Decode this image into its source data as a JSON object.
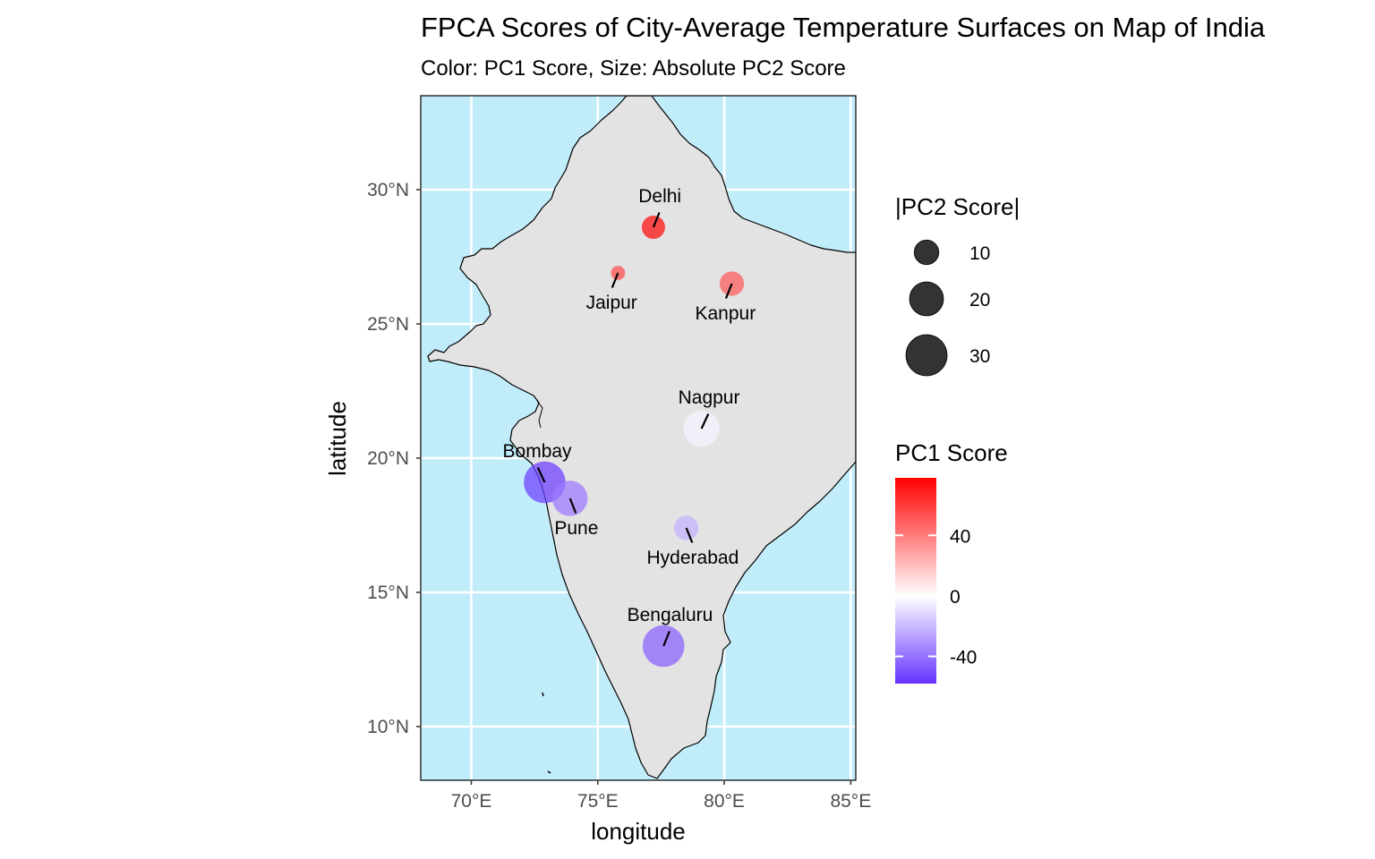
{
  "title": "FPCA Scores of City-Average Temperature Surfaces on Map of India",
  "subtitle": "Color: PC1 Score, Size: Absolute PC2 Score",
  "xlabel": "longitude",
  "ylabel": "latitude",
  "colors": {
    "ocean": "#c1ecfa",
    "land": "#e3e3e3",
    "border": "#000000",
    "grid": "#ffffff",
    "high": "#ff0000",
    "mid": "#ffffff",
    "low": "#6633ff",
    "size_key": "#333333"
  },
  "chart_data": {
    "type": "scatter",
    "x_ticks": [
      {
        "value": 70,
        "label": "70°E"
      },
      {
        "value": 75,
        "label": "75°E"
      },
      {
        "value": 80,
        "label": "80°E"
      },
      {
        "value": 85,
        "label": "85°E"
      }
    ],
    "y_ticks": [
      {
        "value": 10,
        "label": "10°N"
      },
      {
        "value": 15,
        "label": "15°N"
      },
      {
        "value": 20,
        "label": "20°N"
      },
      {
        "value": 25,
        "label": "25°N"
      },
      {
        "value": 30,
        "label": "30°N"
      }
    ],
    "xlim": [
      68,
      85.2
    ],
    "ylim": [
      8,
      33.5
    ],
    "grid": true,
    "cities": [
      {
        "name": "Delhi",
        "lon": 77.2,
        "lat": 28.6,
        "pc1": 75,
        "pc2_abs": 9
      },
      {
        "name": "Jaipur",
        "lon": 75.8,
        "lat": 26.9,
        "pc1": 55,
        "pc2_abs": 3
      },
      {
        "name": "Kanpur",
        "lon": 80.3,
        "lat": 26.5,
        "pc1": 50,
        "pc2_abs": 10
      },
      {
        "name": "Nagpur",
        "lon": 79.1,
        "lat": 21.1,
        "pc1": -3,
        "pc2_abs": 23
      },
      {
        "name": "Bombay",
        "lon": 72.9,
        "lat": 19.1,
        "pc1": -55,
        "pc2_abs": 31
      },
      {
        "name": "Pune",
        "lon": 73.9,
        "lat": 18.5,
        "pc1": -38,
        "pc2_abs": 22
      },
      {
        "name": "Hyderabad",
        "lon": 78.5,
        "lat": 17.4,
        "pc1": -22,
        "pc2_abs": 10
      },
      {
        "name": "Bengaluru",
        "lon": 77.6,
        "lat": 13.0,
        "pc1": -45,
        "pc2_abs": 31
      }
    ],
    "legend_size": {
      "title": "|PC2 Score|",
      "position": "right",
      "entries": [
        {
          "value": 10,
          "label": "10"
        },
        {
          "value": 20,
          "label": "20"
        },
        {
          "value": 30,
          "label": "30"
        }
      ]
    },
    "legend_color": {
      "title": "PC1 Score",
      "position": "right",
      "range": [
        -58,
        78
      ],
      "ticks": [
        {
          "value": 40,
          "label": "40"
        },
        {
          "value": 0,
          "label": "0"
        },
        {
          "value": -40,
          "label": "-40"
        }
      ]
    }
  }
}
